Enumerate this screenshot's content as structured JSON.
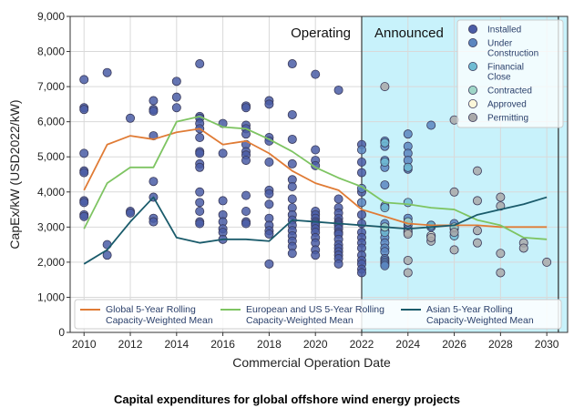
{
  "caption": "Capital expenditures for global offshore wind energy projects",
  "chart_data": {
    "type": "scatter",
    "xlabel": "Commercial Operation Date",
    "ylabel": "CapEx/kW (USD2022/kW)",
    "xlim": [
      2009.4,
      2030.9
    ],
    "ylim": [
      0,
      9000
    ],
    "xticks": [
      "2010",
      "2012",
      "2014",
      "2016",
      "2018",
      "2020",
      "2022",
      "2024",
      "2026",
      "2028",
      "2030"
    ],
    "yticks": [
      "0",
      "1,000",
      "2,000",
      "3,000",
      "4,000",
      "5,000",
      "6,000",
      "7,000",
      "8,000",
      "9,000"
    ],
    "grid": true,
    "regions": [
      {
        "label": "Operating",
        "x_from": 2009.4,
        "x_to": 2022
      },
      {
        "label": "Announced",
        "x_from": 2022,
        "x_to": 2030.9,
        "color": "#c8f2fb"
      }
    ],
    "scatter_legend": {
      "position": "top-right",
      "items": [
        {
          "label": [
            "Installed"
          ],
          "color": "#4a5da6"
        },
        {
          "label": [
            "Under",
            "Construction"
          ],
          "color": "#5b86bf"
        },
        {
          "label": [
            "Financial",
            "Close"
          ],
          "color": "#6fbcd3"
        },
        {
          "label": [
            "Contracted"
          ],
          "color": "#9fd6c7"
        },
        {
          "label": [
            "Approved"
          ],
          "color": "#fbf7d9"
        },
        {
          "label": [
            "Permitting"
          ],
          "color": "#a9a9a9"
        }
      ]
    },
    "series": [
      {
        "name": "Installed",
        "color": "#4a5da6",
        "points": [
          [
            2010,
            7200
          ],
          [
            2010,
            6400
          ],
          [
            2010,
            6350
          ],
          [
            2010,
            5100
          ],
          [
            2010,
            4600
          ],
          [
            2010,
            4550
          ],
          [
            2010,
            3750
          ],
          [
            2010,
            3700
          ],
          [
            2010,
            3350
          ],
          [
            2010,
            3300
          ],
          [
            2011,
            7400
          ],
          [
            2011,
            2500
          ],
          [
            2011,
            2200
          ],
          [
            2012,
            6100
          ],
          [
            2012,
            3450
          ],
          [
            2012,
            3400
          ],
          [
            2013,
            6600
          ],
          [
            2013,
            6350
          ],
          [
            2013,
            6300
          ],
          [
            2013,
            5600
          ],
          [
            2013,
            4300
          ],
          [
            2013,
            3850
          ],
          [
            2013,
            3250
          ],
          [
            2013,
            3150
          ],
          [
            2014,
            7150
          ],
          [
            2014,
            6700
          ],
          [
            2014,
            6400
          ],
          [
            2015,
            7650
          ],
          [
            2015,
            6150
          ],
          [
            2015,
            6100
          ],
          [
            2015,
            5950
          ],
          [
            2015,
            5800
          ],
          [
            2015,
            5550
          ],
          [
            2015,
            5150
          ],
          [
            2015,
            5100
          ],
          [
            2015,
            4800
          ],
          [
            2015,
            4700
          ],
          [
            2015,
            4000
          ],
          [
            2015,
            3700
          ],
          [
            2015,
            3450
          ],
          [
            2015,
            3150
          ],
          [
            2015,
            3100
          ],
          [
            2016,
            5950
          ],
          [
            2016,
            5100
          ],
          [
            2016,
            3750
          ],
          [
            2016,
            3350
          ],
          [
            2016,
            3150
          ],
          [
            2016,
            2950
          ],
          [
            2016,
            2850
          ],
          [
            2016,
            2650
          ],
          [
            2017,
            6450
          ],
          [
            2017,
            6400
          ],
          [
            2017,
            5900
          ],
          [
            2017,
            5800
          ],
          [
            2017,
            5650
          ],
          [
            2017,
            5350
          ],
          [
            2017,
            5150
          ],
          [
            2017,
            5050
          ],
          [
            2017,
            4900
          ],
          [
            2017,
            3900
          ],
          [
            2017,
            3450
          ],
          [
            2017,
            3150
          ],
          [
            2017,
            3100
          ],
          [
            2018,
            6600
          ],
          [
            2018,
            6500
          ],
          [
            2018,
            5550
          ],
          [
            2018,
            5450
          ],
          [
            2018,
            4850
          ],
          [
            2018,
            4050
          ],
          [
            2018,
            3950
          ],
          [
            2018,
            3650
          ],
          [
            2018,
            3250
          ],
          [
            2018,
            3050
          ],
          [
            2018,
            2900
          ],
          [
            2018,
            2800
          ],
          [
            2018,
            1950
          ],
          [
            2019,
            7650
          ],
          [
            2019,
            6200
          ],
          [
            2019,
            5500
          ],
          [
            2019,
            4800
          ],
          [
            2019,
            4350
          ],
          [
            2019,
            4150
          ],
          [
            2019,
            3800
          ],
          [
            2019,
            3550
          ],
          [
            2019,
            3350
          ],
          [
            2019,
            3200
          ],
          [
            2019,
            3050
          ],
          [
            2019,
            2900
          ],
          [
            2019,
            2750
          ],
          [
            2019,
            2600
          ],
          [
            2019,
            2450
          ],
          [
            2019,
            2250
          ],
          [
            2020,
            7350
          ],
          [
            2020,
            5200
          ],
          [
            2020,
            4900
          ],
          [
            2020,
            4750
          ],
          [
            2020,
            3450
          ],
          [
            2020,
            3350
          ],
          [
            2020,
            3250
          ],
          [
            2020,
            3150
          ],
          [
            2020,
            3100
          ],
          [
            2020,
            3050
          ],
          [
            2020,
            2950
          ],
          [
            2020,
            2850
          ],
          [
            2020,
            2700
          ],
          [
            2020,
            2550
          ],
          [
            2020,
            2350
          ],
          [
            2020,
            2200
          ],
          [
            2021,
            6900
          ],
          [
            2021,
            3800
          ],
          [
            2021,
            3550
          ],
          [
            2021,
            3400
          ],
          [
            2021,
            3250
          ],
          [
            2021,
            3150
          ],
          [
            2021,
            3100
          ],
          [
            2021,
            3050
          ],
          [
            2021,
            2950
          ],
          [
            2021,
            2850
          ],
          [
            2021,
            2800
          ],
          [
            2021,
            2650
          ],
          [
            2021,
            2500
          ],
          [
            2021,
            2400
          ],
          [
            2021,
            2300
          ],
          [
            2021,
            2200
          ],
          [
            2021,
            2100
          ],
          [
            2021,
            1950
          ],
          [
            2022,
            5350
          ],
          [
            2022,
            4850
          ],
          [
            2022,
            4550
          ],
          [
            2022,
            4000
          ],
          [
            2022,
            3350
          ],
          [
            2022,
            3100
          ],
          [
            2022,
            2850
          ],
          [
            2022,
            2700
          ],
          [
            2022,
            2550
          ],
          [
            2022,
            2400
          ],
          [
            2022,
            2200
          ],
          [
            2022,
            2050
          ],
          [
            2022,
            1950
          ],
          [
            2022,
            1800
          ],
          [
            2022,
            1700
          ]
        ]
      },
      {
        "name": "Under Construction",
        "color": "#5b86bf",
        "points": [
          [
            2022,
            5200
          ],
          [
            2022,
            4100
          ],
          [
            2022,
            3700
          ],
          [
            2023,
            5450
          ],
          [
            2023,
            5300
          ],
          [
            2023,
            4900
          ],
          [
            2023,
            4700
          ],
          [
            2023,
            4200
          ],
          [
            2023,
            3600
          ],
          [
            2023,
            3100
          ],
          [
            2023,
            3000
          ],
          [
            2023,
            2900
          ],
          [
            2023,
            2700
          ],
          [
            2023,
            2550
          ],
          [
            2023,
            2400
          ],
          [
            2023,
            2300
          ],
          [
            2023,
            2100
          ],
          [
            2023,
            2050
          ],
          [
            2023,
            2000
          ],
          [
            2023,
            1950
          ],
          [
            2023,
            1900
          ],
          [
            2024,
            5650
          ],
          [
            2024,
            5300
          ],
          [
            2024,
            5100
          ],
          [
            2024,
            4900
          ],
          [
            2024,
            4650
          ],
          [
            2024,
            3250
          ],
          [
            2024,
            3050
          ],
          [
            2024,
            2950
          ],
          [
            2024,
            2900
          ],
          [
            2025,
            5900
          ],
          [
            2025,
            3050
          ],
          [
            2025,
            3000
          ],
          [
            2026,
            3100
          ],
          [
            2026,
            2950
          ]
        ]
      },
      {
        "name": "Financial Close",
        "color": "#6fbcd3",
        "points": [
          [
            2023,
            5400
          ],
          [
            2023,
            4850
          ],
          [
            2023,
            3550
          ],
          [
            2023,
            2850
          ],
          [
            2024,
            4700
          ],
          [
            2024,
            3700
          ],
          [
            2025,
            3050
          ],
          [
            2025,
            2750
          ],
          [
            2026,
            2750
          ]
        ]
      },
      {
        "name": "Contracted",
        "color": "#9fd6c7",
        "points": [
          [
            2023,
            3000
          ],
          [
            2024,
            3150
          ],
          [
            2026,
            3000
          ]
        ]
      },
      {
        "name": "Approved",
        "color": "#fbf7d9",
        "points": [
          [
            2024,
            2850
          ],
          [
            2025,
            2750
          ]
        ]
      },
      {
        "name": "Permitting",
        "color": "#a9a9a9",
        "points": [
          [
            2023,
            7000
          ],
          [
            2024,
            2050
          ],
          [
            2024,
            1700
          ],
          [
            2024,
            2800
          ],
          [
            2025,
            2600
          ],
          [
            2025,
            2700
          ],
          [
            2026,
            6050
          ],
          [
            2026,
            4000
          ],
          [
            2026,
            2850
          ],
          [
            2026,
            2350
          ],
          [
            2027,
            4600
          ],
          [
            2027,
            3750
          ],
          [
            2027,
            2900
          ],
          [
            2027,
            2550
          ],
          [
            2028,
            3850
          ],
          [
            2028,
            3600
          ],
          [
            2028,
            2250
          ],
          [
            2028,
            1700
          ],
          [
            2029,
            2550
          ],
          [
            2029,
            2400
          ],
          [
            2030,
            2000
          ]
        ]
      }
    ],
    "lines": [
      {
        "name": [
          "Global 5-Year Rolling",
          "Capacity-Weighted Mean"
        ],
        "color": "#e07b35",
        "x": [
          2010,
          2011,
          2012,
          2013,
          2014,
          2015,
          2016,
          2017,
          2018,
          2019,
          2020,
          2021,
          2022,
          2023,
          2024,
          2025,
          2026,
          2027,
          2028,
          2029,
          2030
        ],
        "y": [
          4050,
          5350,
          5600,
          5500,
          5700,
          5800,
          5350,
          5450,
          5100,
          4600,
          4250,
          4050,
          3500,
          3300,
          3100,
          3050,
          3050,
          3050,
          3000,
          3000,
          3000
        ]
      },
      {
        "name": [
          "European and US 5-Year Rolling",
          "Capacity-Weighted Mean"
        ],
        "color": "#7ec462",
        "x": [
          2010,
          2011,
          2012,
          2013,
          2014,
          2015,
          2016,
          2017,
          2018,
          2019,
          2020,
          2021,
          2022,
          2023,
          2024,
          2025,
          2026,
          2027,
          2028,
          2029,
          2030
        ],
        "y": [
          2950,
          4250,
          4700,
          4700,
          6000,
          6150,
          5850,
          5800,
          5500,
          5150,
          4700,
          4400,
          4150,
          3700,
          3650,
          3550,
          3500,
          3200,
          3050,
          2700,
          2650
        ]
      },
      {
        "name": [
          "Asian 5-Year Rolling",
          "Capacity-Weighted Mean"
        ],
        "color": "#1a5b6b",
        "x": [
          2010,
          2011,
          2012,
          2013,
          2014,
          2015,
          2016,
          2017,
          2018,
          2019,
          2020,
          2021,
          2022,
          2023,
          2024,
          2025,
          2026,
          2027,
          2028,
          2029,
          2030
        ],
        "y": [
          1950,
          2350,
          3150,
          3850,
          2700,
          2550,
          2650,
          2650,
          2600,
          3200,
          3150,
          3100,
          3050,
          3000,
          2950,
          3000,
          3050,
          3350,
          3500,
          3650,
          3850
        ]
      }
    ]
  }
}
